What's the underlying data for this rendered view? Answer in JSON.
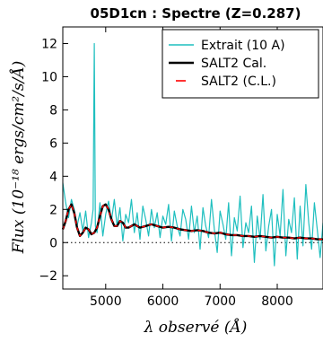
{
  "chart_data": {
    "type": "line",
    "title": "05D1cn : Spectre (Z=0.287)",
    "xlabel": "λ observé (Å)",
    "ylabel": "Flux (10⁻¹⁸ ergs/cm²/s/Å)",
    "xlim": [
      4250,
      8800
    ],
    "ylim": [
      -2.8,
      13.0
    ],
    "xticks": [
      5000,
      6000,
      7000,
      8000
    ],
    "yticks": [
      -2,
      0,
      2,
      4,
      6,
      8,
      10,
      12
    ],
    "legend_position": "top-right",
    "zero_line": true,
    "series": [
      {
        "name": "Extrait (10 A)",
        "color": "#1fbfbf",
        "style": "line",
        "x": [
          4250,
          4300,
          4350,
          4400,
          4450,
          4500,
          4550,
          4600,
          4650,
          4700,
          4750,
          4780,
          4800,
          4820,
          4850,
          4900,
          4950,
          5000,
          5050,
          5100,
          5150,
          5200,
          5250,
          5300,
          5350,
          5400,
          5450,
          5500,
          5550,
          5600,
          5650,
          5700,
          5750,
          5800,
          5850,
          5900,
          5950,
          6000,
          6050,
          6100,
          6150,
          6200,
          6250,
          6300,
          6350,
          6400,
          6450,
          6500,
          6550,
          6600,
          6650,
          6700,
          6750,
          6800,
          6850,
          6900,
          6950,
          7000,
          7050,
          7100,
          7150,
          7200,
          7250,
          7300,
          7350,
          7400,
          7450,
          7500,
          7550,
          7600,
          7650,
          7700,
          7750,
          7800,
          7850,
          7900,
          7950,
          8000,
          8050,
          8100,
          8150,
          8200,
          8250,
          8300,
          8350,
          8400,
          8450,
          8500,
          8550,
          8600,
          8650,
          8700,
          8750,
          8800
        ],
        "y": [
          3.6,
          2.4,
          1.5,
          2.6,
          2.0,
          1.0,
          1.8,
          0.7,
          1.9,
          0.3,
          1.2,
          2.0,
          12.0,
          1.0,
          0.6,
          2.4,
          0.4,
          1.7,
          2.5,
          1.3,
          2.6,
          1.0,
          2.1,
          0.1,
          1.7,
          1.2,
          2.6,
          0.6,
          1.8,
          0.2,
          2.2,
          1.4,
          0.4,
          2.0,
          0.9,
          1.8,
          0.3,
          1.6,
          1.1,
          2.3,
          0.1,
          1.9,
          1.0,
          0.4,
          2.0,
          1.4,
          0.2,
          2.2,
          0.6,
          1.6,
          -0.4,
          2.1,
          1.0,
          0.3,
          2.6,
          0.8,
          -0.6,
          1.9,
          1.1,
          0.2,
          2.4,
          -0.8,
          1.5,
          0.7,
          2.8,
          -0.3,
          1.2,
          0.6,
          2.2,
          -1.2,
          1.6,
          0.2,
          2.9,
          -0.5,
          1.0,
          2.0,
          -1.4,
          1.7,
          0.4,
          3.2,
          -0.8,
          1.4,
          0.6,
          2.7,
          -1.0,
          2.2,
          -0.2,
          3.5,
          1.2,
          -0.4,
          2.4,
          0.8,
          -0.9,
          1.2
        ]
      },
      {
        "name": "SALT2 Cal.",
        "color": "#000000",
        "style": "line",
        "x": [
          4250,
          4300,
          4350,
          4400,
          4450,
          4500,
          4550,
          4600,
          4650,
          4700,
          4750,
          4800,
          4850,
          4900,
          4950,
          5000,
          5050,
          5100,
          5150,
          5200,
          5250,
          5300,
          5350,
          5400,
          5450,
          5500,
          5550,
          5600,
          5700,
          5800,
          5900,
          6000,
          6100,
          6200,
          6300,
          6400,
          6500,
          6600,
          6700,
          6800,
          6900,
          7000,
          7100,
          7200,
          7300,
          7400,
          7500,
          7600,
          7700,
          7800,
          7900,
          8000,
          8100,
          8200,
          8300,
          8400,
          8500,
          8600,
          8700,
          8800
        ],
        "y": [
          0.8,
          1.3,
          2.0,
          2.3,
          1.8,
          0.9,
          0.4,
          0.6,
          0.9,
          0.8,
          0.5,
          0.6,
          0.9,
          1.6,
          2.2,
          2.3,
          2.0,
          1.4,
          1.0,
          1.0,
          1.3,
          1.2,
          0.9,
          0.9,
          1.0,
          1.1,
          1.0,
          0.9,
          1.0,
          1.1,
          1.0,
          0.9,
          0.95,
          0.9,
          0.8,
          0.75,
          0.7,
          0.75,
          0.7,
          0.6,
          0.55,
          0.6,
          0.5,
          0.45,
          0.45,
          0.4,
          0.4,
          0.35,
          0.4,
          0.35,
          0.3,
          0.35,
          0.3,
          0.3,
          0.25,
          0.3,
          0.25,
          0.25,
          0.2,
          0.2
        ]
      },
      {
        "name": "SALT2 (C.L.)",
        "color": "#ff0000",
        "style": "dashed",
        "x": [
          4250,
          4300,
          4350,
          4400,
          4450,
          4500,
          4550,
          4600,
          4650,
          4700,
          4750,
          4800,
          4850,
          4900,
          4950,
          5000,
          5050,
          5100,
          5150,
          5200,
          5250,
          5300,
          5350,
          5400,
          5450,
          5500,
          5550,
          5600,
          5700,
          5800,
          5900,
          6000,
          6100,
          6200,
          6300,
          6400,
          6500,
          6600,
          6700,
          6800,
          6900,
          7000,
          7100,
          7200,
          7300,
          7400,
          7500,
          7600,
          7700,
          7800,
          7900,
          8000,
          8100,
          8200,
          8300,
          8400,
          8500,
          8600,
          8700,
          8800
        ],
        "y": [
          0.8,
          1.3,
          2.0,
          2.3,
          1.8,
          0.9,
          0.4,
          0.6,
          0.9,
          0.8,
          0.5,
          0.6,
          0.9,
          1.6,
          2.2,
          2.3,
          2.0,
          1.4,
          1.0,
          1.0,
          1.3,
          1.2,
          0.9,
          0.9,
          1.0,
          1.1,
          1.0,
          0.9,
          1.0,
          1.1,
          1.0,
          0.9,
          0.95,
          0.9,
          0.8,
          0.75,
          0.7,
          0.75,
          0.7,
          0.6,
          0.55,
          0.6,
          0.5,
          0.45,
          0.45,
          0.4,
          0.4,
          0.35,
          0.4,
          0.35,
          0.3,
          0.35,
          0.3,
          0.3,
          0.25,
          0.3,
          0.25,
          0.25,
          0.2,
          0.2
        ]
      }
    ]
  }
}
